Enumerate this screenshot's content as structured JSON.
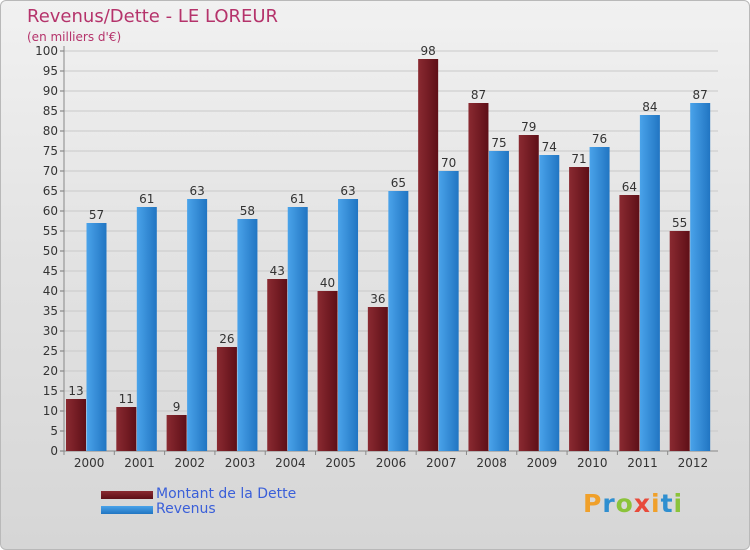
{
  "title": "Revenus/Dette - LE LOREUR",
  "subtitle": "(en milliers d'€)",
  "colors": {
    "series1": "#7a1e26",
    "series2": "#2d86d8",
    "title": "#b5336b",
    "legend_text": "#3a5fd9"
  },
  "logo": {
    "text": "Proxiti",
    "letters": [
      "P",
      "r",
      "o",
      "x",
      "i",
      "t",
      "i"
    ],
    "colors": [
      "#f0a02a",
      "#2f8fd0",
      "#8bc33a",
      "#e84a3a",
      "#f0a02a",
      "#2f8fd0",
      "#8bc33a"
    ]
  },
  "chart_data": {
    "type": "bar",
    "title": "Revenus/Dette - LE LOREUR",
    "subtitle": "(en milliers d'€)",
    "categories": [
      "2000",
      "2001",
      "2002",
      "2003",
      "2004",
      "2005",
      "2006",
      "2007",
      "2008",
      "2009",
      "2010",
      "2011",
      "2012"
    ],
    "series": [
      {
        "name": "Montant de la Dette",
        "values": [
          13,
          11,
          9,
          26,
          43,
          40,
          36,
          98,
          87,
          79,
          71,
          64,
          55
        ]
      },
      {
        "name": "Revenus",
        "values": [
          57,
          61,
          63,
          58,
          61,
          63,
          65,
          70,
          75,
          74,
          76,
          84,
          87
        ]
      }
    ],
    "ylim": [
      0,
      100
    ],
    "ytick_step": 5,
    "grid": true,
    "legend_position": "bottom-left",
    "data_labels": true
  }
}
